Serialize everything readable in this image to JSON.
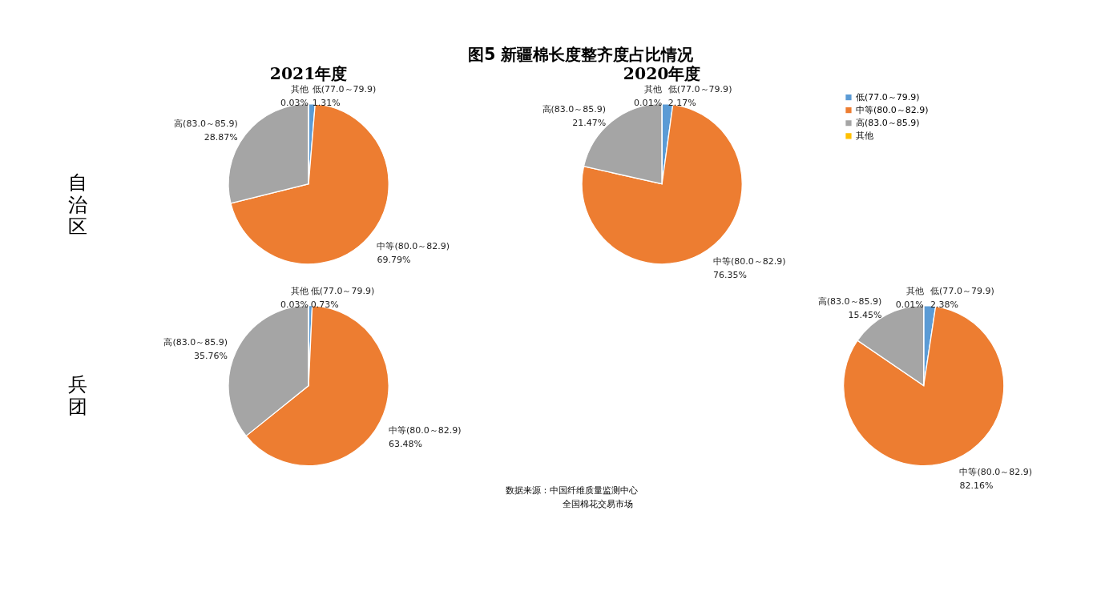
{
  "chart_data": [
    {
      "type": "pie",
      "title": "图5 新疆棉长度整齐度占比情况",
      "subtitle": "2021年度",
      "ylabel": "自治区",
      "legend": "right",
      "categories": [
        "低(77.0～79.9)",
        "中等(80.0～82.9)",
        "高(83.0～85.9)",
        "其他"
      ],
      "values": [
        1.31,
        69.79,
        28.87,
        0.03
      ],
      "value_labels": [
        "1.31%",
        "69.79%",
        "28.87%",
        "0.03%"
      ],
      "colors": [
        "#5b9bd5",
        "#ed7d31",
        "#a5a5a5",
        "#ffc000"
      ]
    },
    {
      "type": "pie",
      "subtitle": "2020年度",
      "categories": [
        "低(77.0～79.9)",
        "中等(80.0～82.9)",
        "高(83.0～85.9)",
        "其他"
      ],
      "values": [
        2.17,
        76.35,
        21.47,
        0.01
      ],
      "value_labels": [
        "2.17%",
        "76.35%",
        "21.47%",
        "0.01%"
      ],
      "colors": [
        "#5b9bd5",
        "#ed7d31",
        "#a5a5a5",
        "#ffc000"
      ]
    },
    {
      "type": "pie",
      "ylabel": "兵团",
      "categories": [
        "低(77.0～79.9)",
        "中等(80.0～82.9)",
        "高(83.0～85.9)",
        "其他"
      ],
      "values": [
        0.73,
        63.48,
        35.76,
        0.03
      ],
      "value_labels": [
        "0.73%",
        "63.48%",
        "35.76%",
        "0.03%"
      ],
      "colors": [
        "#5b9bd5",
        "#ed7d31",
        "#a5a5a5",
        "#ffc000"
      ],
      "annotations": [
        "数据来源：中国纤维质量监测中心",
        "全国棉花交易市场"
      ]
    },
    {
      "type": "pie",
      "categories": [
        "低(77.0～79.9)",
        "中等(80.0～82.9)",
        "高(83.0～85.9)",
        "其他"
      ],
      "values": [
        2.38,
        82.16,
        15.45,
        0.01
      ],
      "value_labels": [
        "2.38%",
        "82.16%",
        "15.45%",
        "0.01%"
      ],
      "colors": [
        "#5b9bd5",
        "#ed7d31",
        "#a5a5a5",
        "#ffc000"
      ]
    }
  ]
}
